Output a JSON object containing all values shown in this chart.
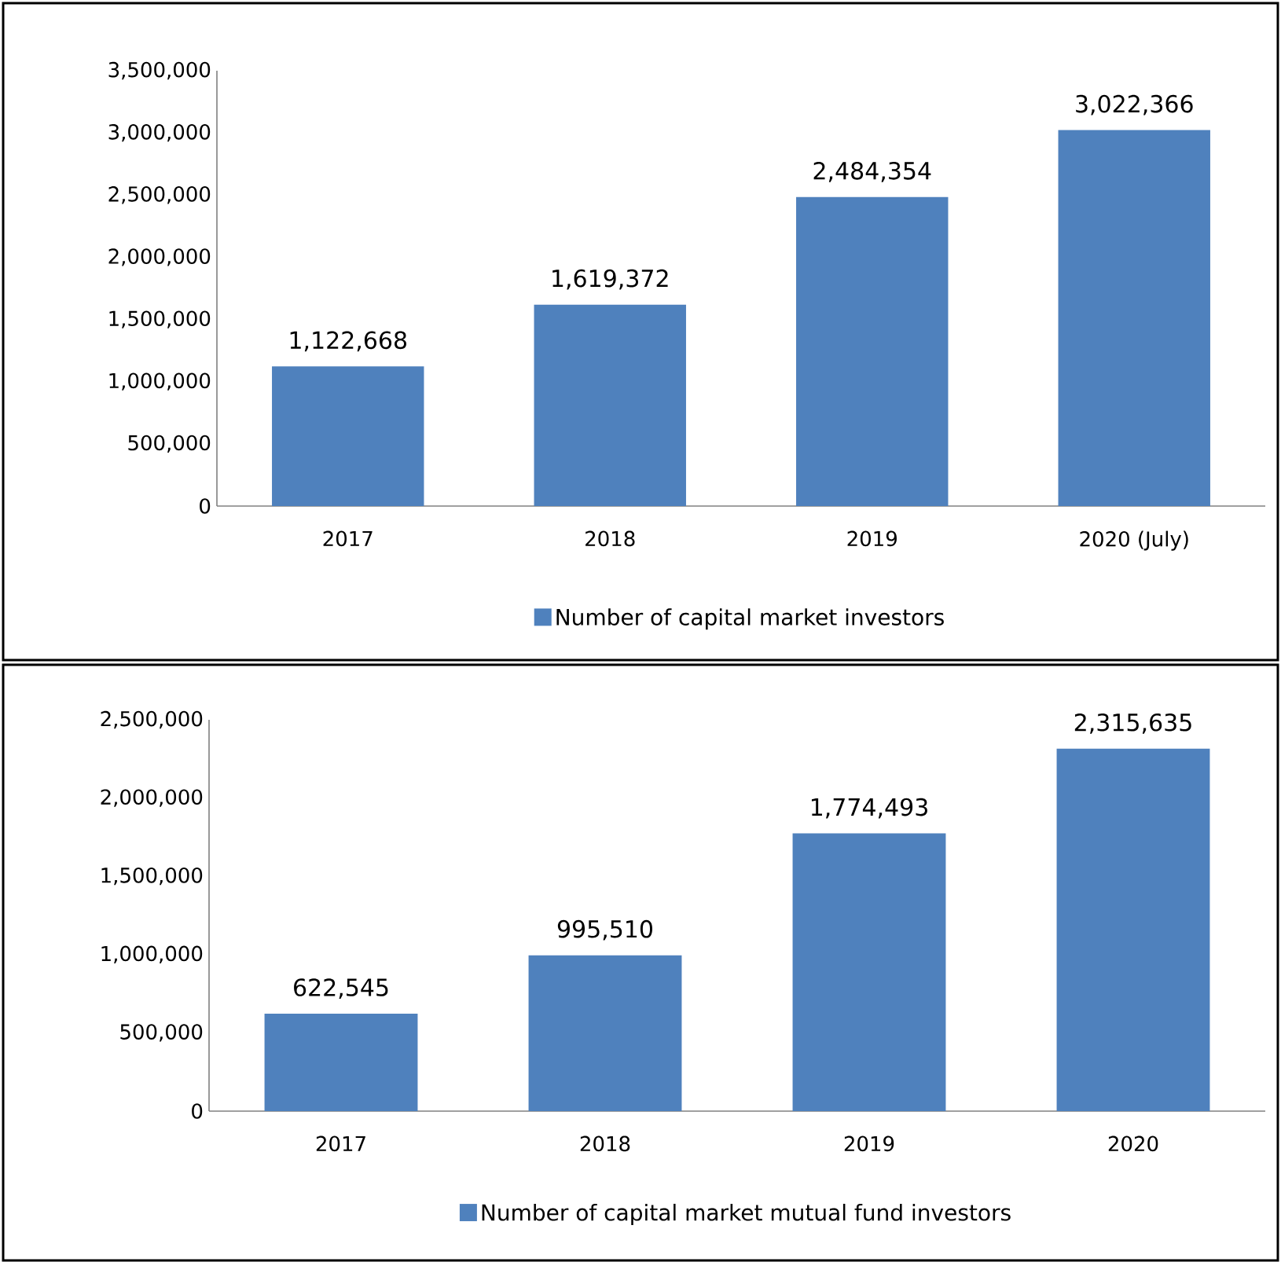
{
  "chart_data": [
    {
      "type": "bar",
      "categories": [
        "2017",
        "2018",
        "2019",
        "2020 (July)"
      ],
      "series": [
        {
          "name": "Number of capital market investors",
          "color": "#4f81bd",
          "values": [
            1122668,
            1619372,
            2484354,
            3022366
          ],
          "value_labels": [
            "1,122,668",
            "1,619,372",
            "2,484,354",
            "3,022,366"
          ]
        }
      ],
      "ylim": [
        0,
        3500000
      ],
      "yticks": [
        {
          "value": 0,
          "label": "0"
        },
        {
          "value": 500000,
          "label": "500,000"
        },
        {
          "value": 1000000,
          "label": "1,000,000"
        },
        {
          "value": 1500000,
          "label": "1,500,000"
        },
        {
          "value": 2000000,
          "label": "2,000,000"
        },
        {
          "value": 2500000,
          "label": "2,500,000"
        },
        {
          "value": 3000000,
          "label": "3,000,000"
        },
        {
          "value": 3500000,
          "label": "3,500,000"
        }
      ],
      "legend": "bottom",
      "grid": false
    },
    {
      "type": "bar",
      "categories": [
        "2017",
        "2018",
        "2019",
        "2020"
      ],
      "series": [
        {
          "name": "Number of capital market mutual fund investors",
          "color": "#4f81bd",
          "values": [
            622545,
            995510,
            1774493,
            2315635
          ],
          "value_labels": [
            "622,545",
            "995,510",
            "1,774,493",
            "2,315,635"
          ]
        }
      ],
      "ylim": [
        0,
        2500000
      ],
      "yticks": [
        {
          "value": 0,
          "label": "0"
        },
        {
          "value": 500000,
          "label": "500,000"
        },
        {
          "value": 1000000,
          "label": "1,000,000"
        },
        {
          "value": 1500000,
          "label": "1,500,000"
        },
        {
          "value": 2000000,
          "label": "2,000,000"
        },
        {
          "value": 2500000,
          "label": "2,500,000"
        }
      ],
      "legend": "bottom",
      "grid": false
    }
  ]
}
